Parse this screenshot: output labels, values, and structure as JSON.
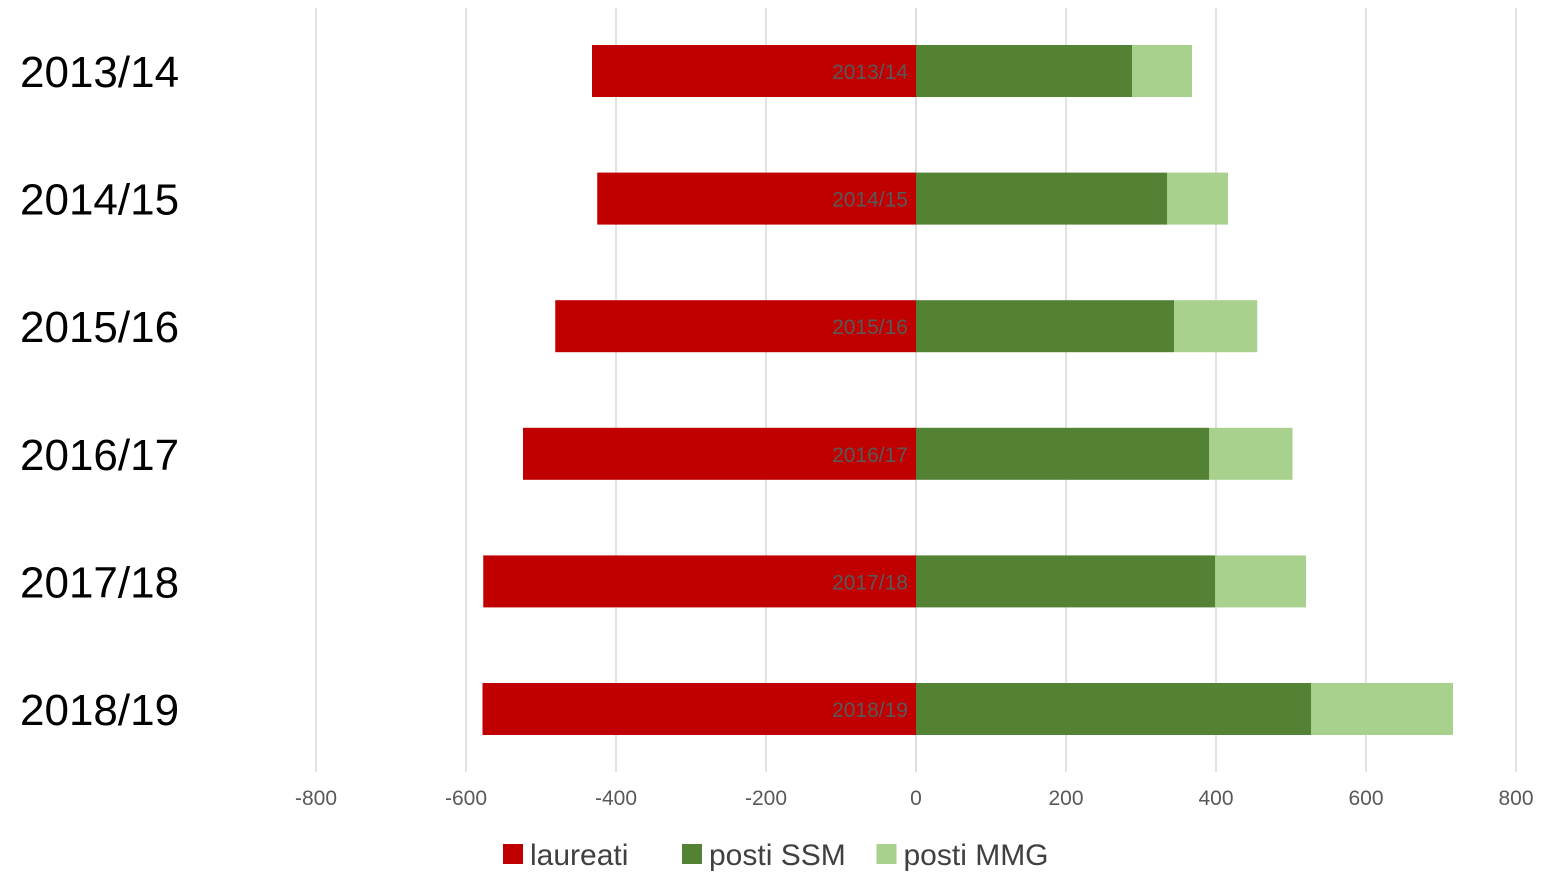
{
  "chart_data": {
    "type": "bar",
    "orientation": "horizontal",
    "stacked": true,
    "categories": [
      "2013/14",
      "2014/15",
      "2015/16",
      "2016/17",
      "2017/18",
      "2018/19"
    ],
    "series": [
      {
        "name": "laureati",
        "color": "#c00000",
        "values": [
          -432,
          -425,
          -481,
          -524,
          -577,
          -578
        ]
      },
      {
        "name": "posti SSM",
        "color": "#548235",
        "values": [
          288,
          335,
          344,
          391,
          399,
          527
        ]
      },
      {
        "name": "posti MMG",
        "color": "#a9d18e",
        "values": [
          80,
          81,
          111,
          111,
          121,
          189
        ]
      }
    ],
    "bar_labels": [
      "2013/14",
      "2014/15",
      "2015/16",
      "2016/17",
      "2017/18",
      "2018/19"
    ],
    "xlim": [
      -800,
      800
    ],
    "x_ticks": [
      -800,
      -600,
      -400,
      -200,
      0,
      200,
      400,
      600,
      800
    ],
    "x_tick_labels": [
      "-800",
      "-600",
      "-400",
      "-200",
      "0",
      "200",
      "400",
      "600",
      "800"
    ],
    "grid": "vertical",
    "legend": "bottom-center",
    "title": "",
    "xlabel": "",
    "ylabel": ""
  }
}
